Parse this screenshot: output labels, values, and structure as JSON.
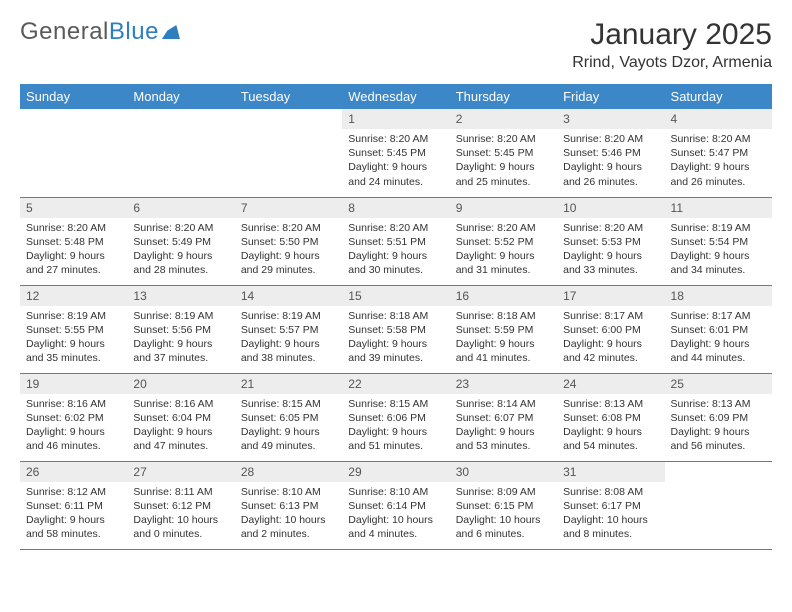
{
  "logo": {
    "part1": "General",
    "part2": "Blue"
  },
  "title": "January 2025",
  "location": "Rrind, Vayots Dzor, Armenia",
  "colors": {
    "header_bg": "#3b87c8",
    "header_text": "#ffffff",
    "daynum_bg": "#ededed",
    "border": "#3b87c8",
    "logo_blue": "#2f7fbf"
  },
  "weekdays": [
    "Sunday",
    "Monday",
    "Tuesday",
    "Wednesday",
    "Thursday",
    "Friday",
    "Saturday"
  ],
  "weeks": [
    [
      null,
      null,
      null,
      {
        "n": "1",
        "sr": "8:20 AM",
        "ss": "5:45 PM",
        "dl": "9 hours and 24 minutes."
      },
      {
        "n": "2",
        "sr": "8:20 AM",
        "ss": "5:45 PM",
        "dl": "9 hours and 25 minutes."
      },
      {
        "n": "3",
        "sr": "8:20 AM",
        "ss": "5:46 PM",
        "dl": "9 hours and 26 minutes."
      },
      {
        "n": "4",
        "sr": "8:20 AM",
        "ss": "5:47 PM",
        "dl": "9 hours and 26 minutes."
      }
    ],
    [
      {
        "n": "5",
        "sr": "8:20 AM",
        "ss": "5:48 PM",
        "dl": "9 hours and 27 minutes."
      },
      {
        "n": "6",
        "sr": "8:20 AM",
        "ss": "5:49 PM",
        "dl": "9 hours and 28 minutes."
      },
      {
        "n": "7",
        "sr": "8:20 AM",
        "ss": "5:50 PM",
        "dl": "9 hours and 29 minutes."
      },
      {
        "n": "8",
        "sr": "8:20 AM",
        "ss": "5:51 PM",
        "dl": "9 hours and 30 minutes."
      },
      {
        "n": "9",
        "sr": "8:20 AM",
        "ss": "5:52 PM",
        "dl": "9 hours and 31 minutes."
      },
      {
        "n": "10",
        "sr": "8:20 AM",
        "ss": "5:53 PM",
        "dl": "9 hours and 33 minutes."
      },
      {
        "n": "11",
        "sr": "8:19 AM",
        "ss": "5:54 PM",
        "dl": "9 hours and 34 minutes."
      }
    ],
    [
      {
        "n": "12",
        "sr": "8:19 AM",
        "ss": "5:55 PM",
        "dl": "9 hours and 35 minutes."
      },
      {
        "n": "13",
        "sr": "8:19 AM",
        "ss": "5:56 PM",
        "dl": "9 hours and 37 minutes."
      },
      {
        "n": "14",
        "sr": "8:19 AM",
        "ss": "5:57 PM",
        "dl": "9 hours and 38 minutes."
      },
      {
        "n": "15",
        "sr": "8:18 AM",
        "ss": "5:58 PM",
        "dl": "9 hours and 39 minutes."
      },
      {
        "n": "16",
        "sr": "8:18 AM",
        "ss": "5:59 PM",
        "dl": "9 hours and 41 minutes."
      },
      {
        "n": "17",
        "sr": "8:17 AM",
        "ss": "6:00 PM",
        "dl": "9 hours and 42 minutes."
      },
      {
        "n": "18",
        "sr": "8:17 AM",
        "ss": "6:01 PM",
        "dl": "9 hours and 44 minutes."
      }
    ],
    [
      {
        "n": "19",
        "sr": "8:16 AM",
        "ss": "6:02 PM",
        "dl": "9 hours and 46 minutes."
      },
      {
        "n": "20",
        "sr": "8:16 AM",
        "ss": "6:04 PM",
        "dl": "9 hours and 47 minutes."
      },
      {
        "n": "21",
        "sr": "8:15 AM",
        "ss": "6:05 PM",
        "dl": "9 hours and 49 minutes."
      },
      {
        "n": "22",
        "sr": "8:15 AM",
        "ss": "6:06 PM",
        "dl": "9 hours and 51 minutes."
      },
      {
        "n": "23",
        "sr": "8:14 AM",
        "ss": "6:07 PM",
        "dl": "9 hours and 53 minutes."
      },
      {
        "n": "24",
        "sr": "8:13 AM",
        "ss": "6:08 PM",
        "dl": "9 hours and 54 minutes."
      },
      {
        "n": "25",
        "sr": "8:13 AM",
        "ss": "6:09 PM",
        "dl": "9 hours and 56 minutes."
      }
    ],
    [
      {
        "n": "26",
        "sr": "8:12 AM",
        "ss": "6:11 PM",
        "dl": "9 hours and 58 minutes."
      },
      {
        "n": "27",
        "sr": "8:11 AM",
        "ss": "6:12 PM",
        "dl": "10 hours and 0 minutes."
      },
      {
        "n": "28",
        "sr": "8:10 AM",
        "ss": "6:13 PM",
        "dl": "10 hours and 2 minutes."
      },
      {
        "n": "29",
        "sr": "8:10 AM",
        "ss": "6:14 PM",
        "dl": "10 hours and 4 minutes."
      },
      {
        "n": "30",
        "sr": "8:09 AM",
        "ss": "6:15 PM",
        "dl": "10 hours and 6 minutes."
      },
      {
        "n": "31",
        "sr": "8:08 AM",
        "ss": "6:17 PM",
        "dl": "10 hours and 8 minutes."
      },
      null
    ]
  ]
}
